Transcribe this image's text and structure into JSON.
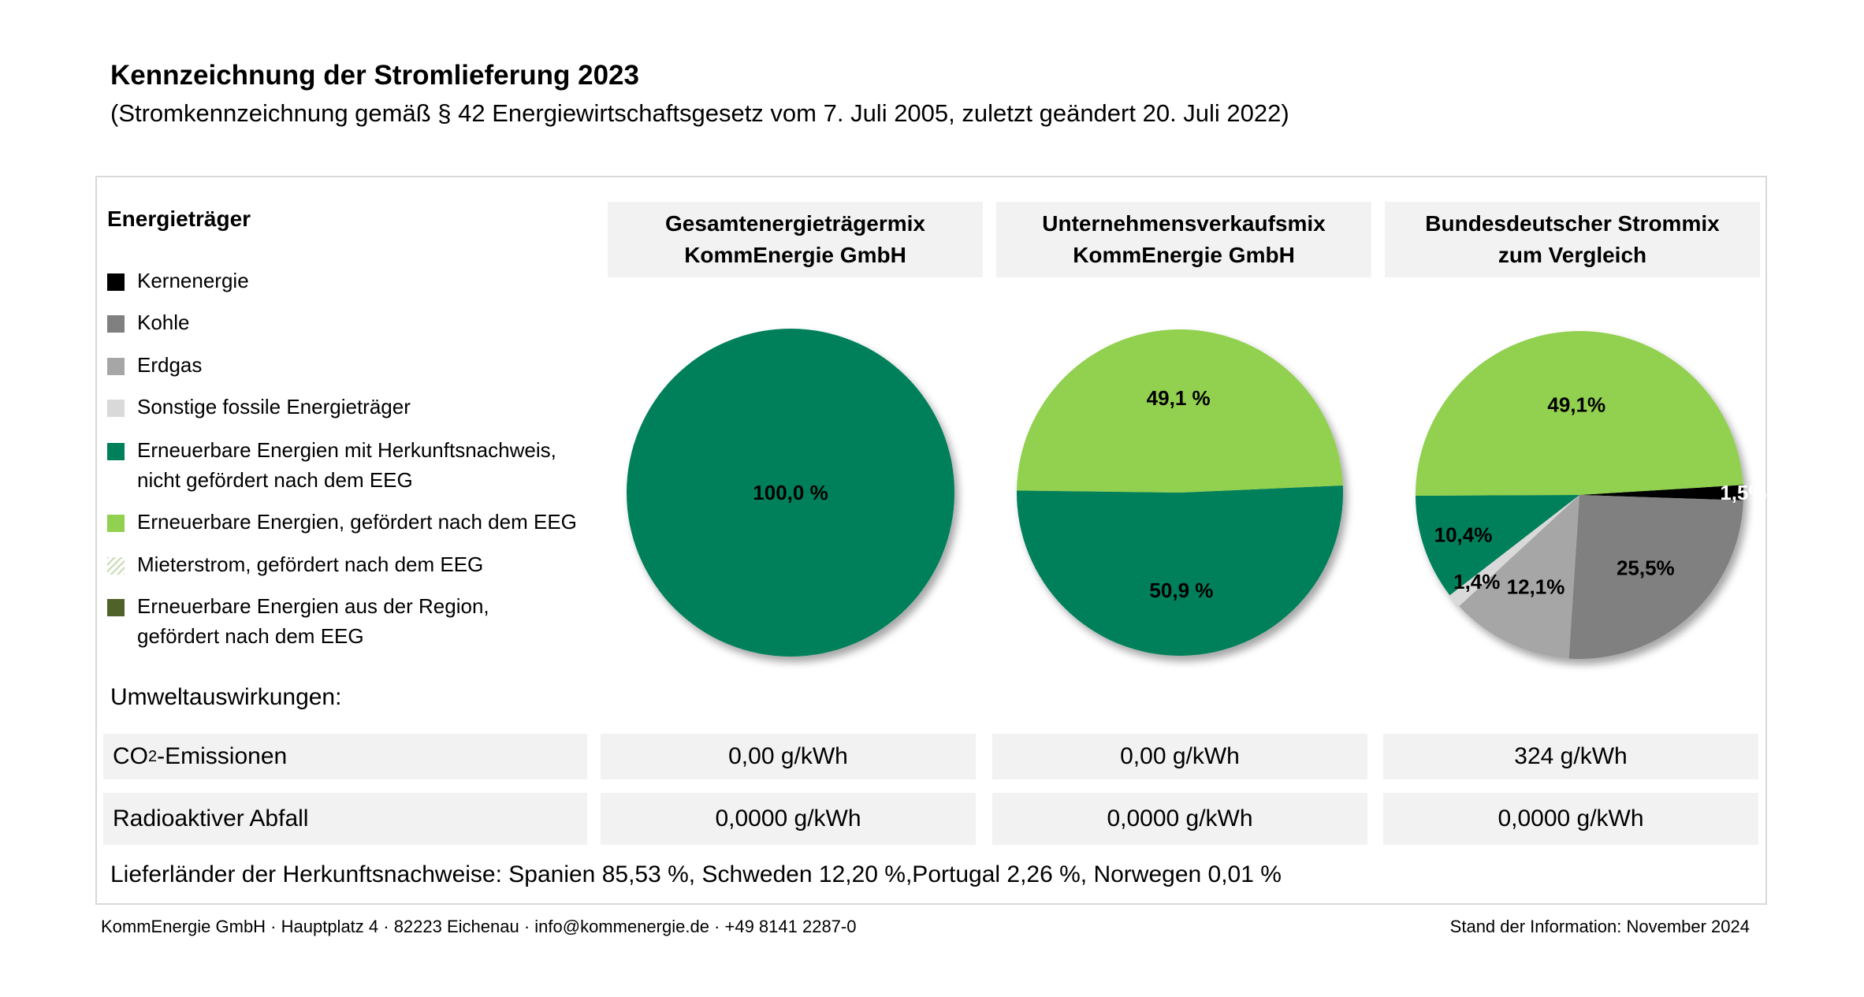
{
  "header": {
    "title": "Kennzeichnung der Stromlieferung 2023",
    "subtitle": "(Stromkennzeichnung gemäß § 42 Energiewirtschaftsgesetz vom 7. Juli 2005, zuletzt geändert 20. Juli 2022)"
  },
  "legend": {
    "title": "Energieträger",
    "items": [
      {
        "line1": "Kernenergie",
        "line2": "",
        "color": "#000000",
        "pattern": false
      },
      {
        "line1": "Kohle",
        "line2": "",
        "color": "#808080",
        "pattern": false
      },
      {
        "line1": "Erdgas",
        "line2": "",
        "color": "#a6a6a6",
        "pattern": false
      },
      {
        "line1": "Sonstige fossile Energieträger",
        "line2": "",
        "color": "#d9d9d9",
        "pattern": false
      },
      {
        "line1": "Erneuerbare Energien mit Herkunftsnachweis,",
        "line2": "nicht gefördert nach dem EEG",
        "color": "#00805a",
        "pattern": false
      },
      {
        "line1": "Erneuerbare Energien, gefördert nach dem EEG",
        "line2": "",
        "color": "#92d050",
        "pattern": false
      },
      {
        "line1": "Mieterstrom, gefördert nach dem EEG",
        "line2": "",
        "color": "#e2efd9",
        "pattern": true
      },
      {
        "line1": "Erneuerbare Energien aus der Region,",
        "line2": "gefördert nach dem EEG",
        "color": "#4f6228",
        "pattern": false
      }
    ]
  },
  "columns": [
    {
      "line1": "Gesamtenergieträgermix",
      "line2": "KommEnergie GmbH"
    },
    {
      "line1": "Unternehmensverkaufsmix",
      "line2": "KommEnergie GmbH"
    },
    {
      "line1": "Bundesdeutscher Strommix",
      "line2": "zum Vergleich"
    }
  ],
  "chart_data": [
    {
      "type": "pie",
      "title": "Gesamtenergieträgermix KommEnergie GmbH",
      "slices": [
        {
          "name": "Erneuerbare Energien mit Herkunftsnachweis, nicht gefördert nach dem EEG",
          "value": 100.0,
          "label": "100,0 %",
          "color": "#00805a",
          "text_color": "#000000"
        }
      ]
    },
    {
      "type": "pie",
      "title": "Unternehmensverkaufsmix KommEnergie GmbH",
      "slices": [
        {
          "name": "Erneuerbare Energien mit Herkunftsnachweis, nicht gefördert nach dem EEG",
          "value": 50.9,
          "label": "50,9 %",
          "color": "#00805a",
          "text_color": "#000000"
        },
        {
          "name": "Erneuerbare Energien, gefördert nach dem EEG",
          "value": 49.1,
          "label": "49,1 %",
          "color": "#92d050",
          "text_color": "#000000"
        }
      ]
    },
    {
      "type": "pie",
      "title": "Bundesdeutscher Strommix zum Vergleich",
      "slices": [
        {
          "name": "Kernenergie",
          "value": 1.5,
          "label": "1,5%",
          "color": "#000000",
          "text_color": "#ffffff"
        },
        {
          "name": "Kohle",
          "value": 25.5,
          "label": "25,5%",
          "color": "#808080",
          "text_color": "#000000"
        },
        {
          "name": "Erdgas",
          "value": 12.1,
          "label": "12,1%",
          "color": "#a6a6a6",
          "text_color": "#000000"
        },
        {
          "name": "Sonstige fossile Energieträger",
          "value": 1.4,
          "label": "1,4%",
          "color": "#d9d9d9",
          "text_color": "#000000"
        },
        {
          "name": "Erneuerbare Energien mit Herkunftsnachweis, nicht gefördert nach dem EEG",
          "value": 10.4,
          "label": "10,4%",
          "color": "#00805a",
          "text_color": "#000000"
        },
        {
          "name": "Erneuerbare Energien, gefördert nach dem EEG",
          "value": 49.1,
          "label": "49,1%",
          "color": "#92d050",
          "text_color": "#000000"
        }
      ]
    }
  ],
  "environment": {
    "label": "Umweltauswirkungen:",
    "co2": {
      "label_main": "CO",
      "label_sub": "2",
      "label_rest": "-Emissionen",
      "values": [
        "0,00 g/kWh",
        "0,00 g/kWh",
        "324 g/kWh"
      ]
    },
    "waste": {
      "label": "Radioaktiver Abfall",
      "values": [
        "0,0000 g/kWh",
        "0,0000 g/kWh",
        "0,0000 g/kWh"
      ]
    }
  },
  "origin_text": "Lieferländer der Herkunftsnachweise: Spanien 85,53 %, Schweden 12,20 %,Portugal 2,26 %, Norwegen 0,01 %",
  "footer": {
    "left": "KommEnergie GmbH · Hauptplatz 4 · 82223 Eichenau · info@kommenergie.de · +49 8141 2287-0",
    "right": "Stand der Information: November 2024"
  }
}
